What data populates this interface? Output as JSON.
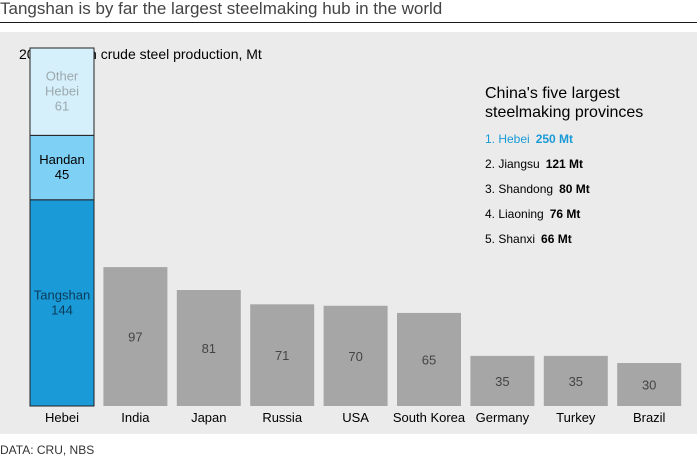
{
  "title": "Tangshan is by far the largest steelmaking hub in the world",
  "source": "DATA: CRU, NBS",
  "chart_data": {
    "type": "bar",
    "subtitle": "2020 carbon crude steel production, Mt",
    "categories": [
      "Hebei",
      "India",
      "Japan",
      "Russia",
      "USA",
      "South Korea",
      "Germany",
      "Turkey",
      "Brazil"
    ],
    "values": [
      250,
      97,
      81,
      71,
      70,
      65,
      35,
      35,
      30
    ],
    "stacked_first_bar": [
      {
        "name": "Tangshan",
        "value": 144,
        "color": "#1a9ad6",
        "label_color": "#0b3b5a"
      },
      {
        "name": "Handan",
        "value": 45,
        "color": "#7fd0f5",
        "label_color": "#000000"
      },
      {
        "name": "Other Hebei",
        "value": 61,
        "color": "#d6f0fb",
        "label_color": "#9ca8ae"
      }
    ],
    "bar_color": "#a6a6a6",
    "value_label_color": "#444444",
    "ylim": [
      0,
      250
    ],
    "grid": false,
    "legend": {
      "placement": "top-right",
      "title": "China's five largest steelmaking provinces",
      "items": [
        {
          "label": "1. Hebei",
          "value": "250 Mt",
          "highlight": true
        },
        {
          "label": "2. Jiangsu",
          "value": "121 Mt",
          "highlight": false
        },
        {
          "label": "3. Shandong",
          "value": "80 Mt",
          "highlight": false
        },
        {
          "label": "4. Liaoning",
          "value": "76 Mt",
          "highlight": false
        },
        {
          "label": "5. Shanxi",
          "value": "66 Mt",
          "highlight": false
        }
      ],
      "highlight_color": "#1a9ad6"
    }
  }
}
